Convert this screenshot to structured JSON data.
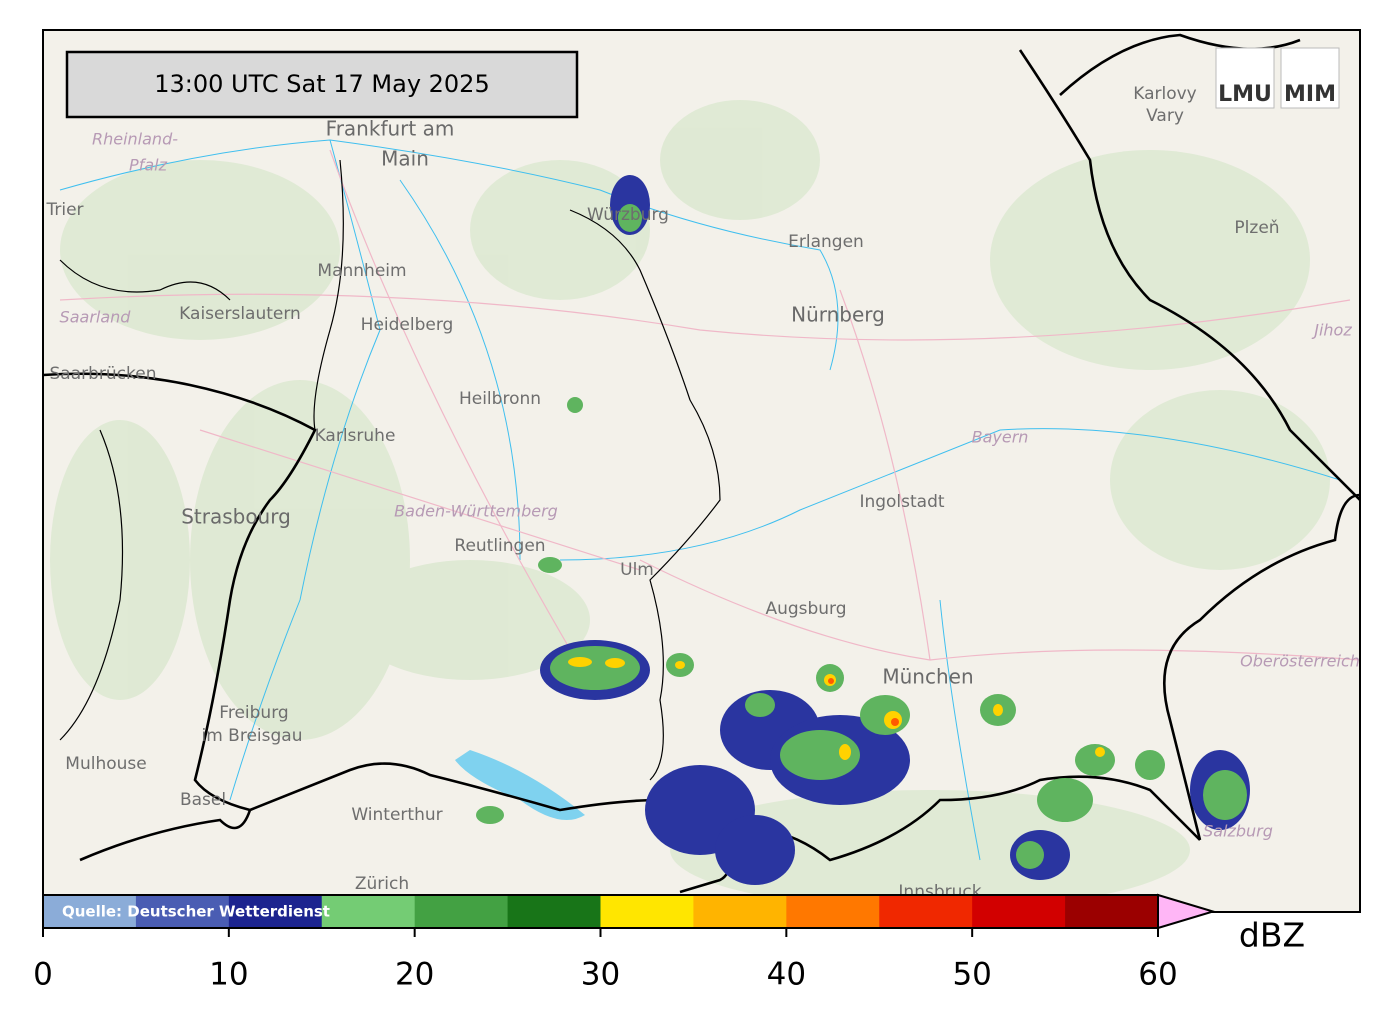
{
  "header": {
    "timestamp": "13:00 UTC  Sat 17 May 2025"
  },
  "logo": [
    "LMU",
    "MIM"
  ],
  "map_labels": [
    "Frankfurt am",
    "Main",
    "Rheinland-",
    "Pfalz",
    "Trier",
    "Mannheim",
    "Kaiserslautern",
    "Heidelberg",
    "Saarland",
    "Saarbrücken",
    "Karlsruhe",
    "Heilbronn",
    "Würzburg",
    "Erlangen",
    "Nürnberg",
    "Karlovy",
    "Vary",
    "Plzeň",
    "Jihoz",
    "Bayern",
    "Ingolstadt",
    "Baden-Württemberg",
    "Strasbourg",
    "Reutlingen",
    "Ulm",
    "Augsburg",
    "München",
    "Oberösterreich",
    "Freiburg",
    "im Breisgau",
    "Mulhouse",
    "Basel",
    "Winterthur",
    "Zürich",
    "Innsbruck",
    "Salzburg"
  ],
  "colorbar": {
    "type": "colorbar",
    "label": "dBZ",
    "source": "Quelle: Deutscher Wetterdienst",
    "lim": [
      0,
      60
    ],
    "ticks": [
      0,
      10,
      20,
      30,
      40,
      50,
      60
    ],
    "bounds": [
      0,
      5,
      10,
      15,
      20,
      25,
      30,
      35,
      40,
      45,
      50,
      55,
      60
    ],
    "colors": [
      "#8bacd8",
      "#4a5db3",
      "#1c248f",
      "#74cc74",
      "#43a143",
      "#187518",
      "#ffe600",
      "#ffb400",
      "#ff7800",
      "#f02800",
      "#d20000",
      "#9b0000"
    ],
    "extend_color": "#ffb6f6"
  }
}
